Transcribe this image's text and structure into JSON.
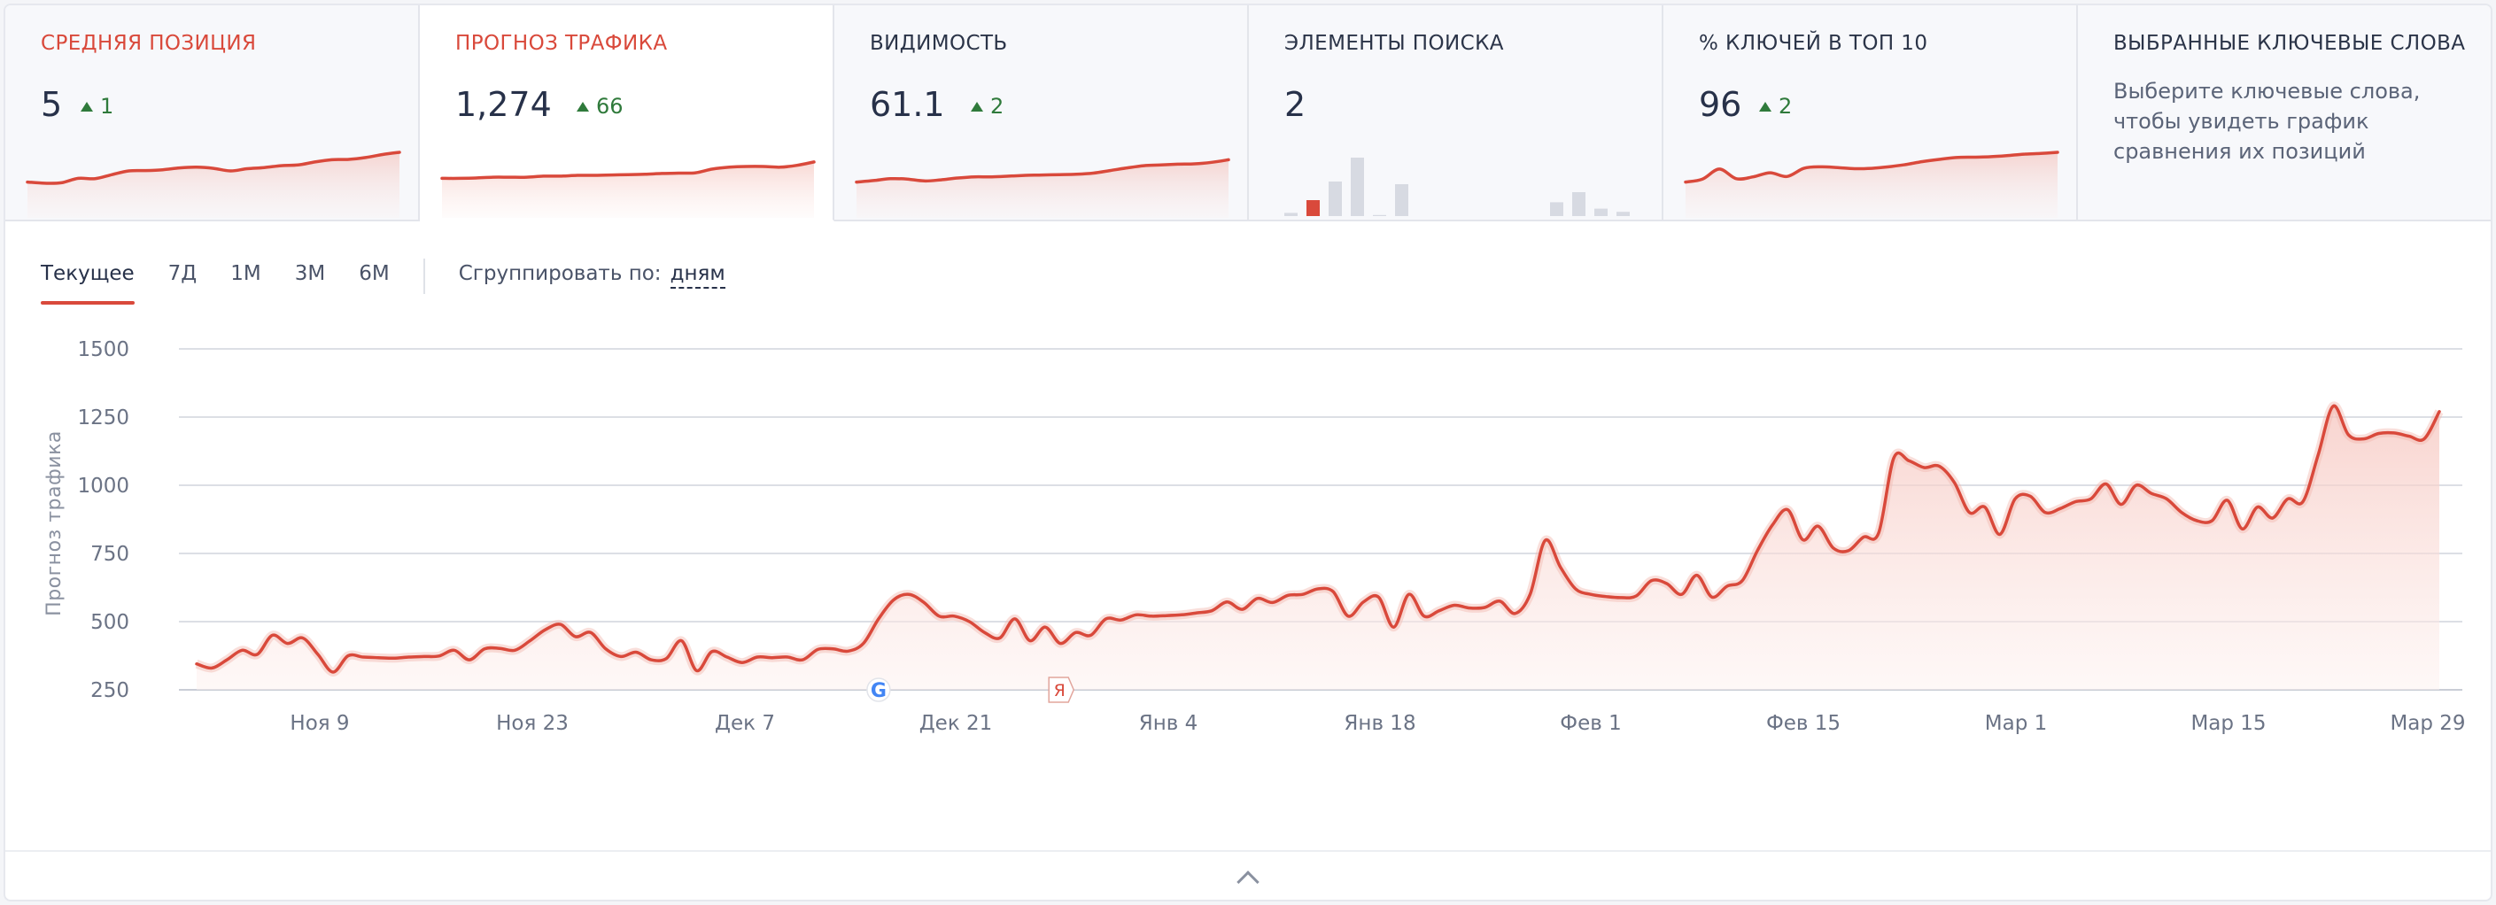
{
  "cards": [
    {
      "title": "Средняя позиция",
      "value": "5",
      "delta": "1",
      "red": true,
      "active": false,
      "spark": [
        2.0,
        1.7,
        1.8,
        3.0,
        2.9,
        4.0,
        5.0,
        5.1,
        5.3,
        5.8,
        6.0,
        5.7,
        5.0,
        5.6,
        5.9,
        6.4,
        6.6,
        7.4,
        8.0,
        8.1,
        8.6,
        9.4,
        10.0
      ]
    },
    {
      "title": "Прогноз трафика",
      "value": "1,274",
      "delta": "66",
      "red": true,
      "active": true,
      "spark": [
        3.0,
        3.0,
        3.1,
        3.3,
        3.3,
        3.3,
        3.6,
        3.6,
        3.8,
        3.8,
        3.9,
        4.0,
        4.1,
        4.3,
        4.4,
        4.5,
        5.5,
        6.0,
        6.2,
        6.2,
        6.0,
        6.5,
        7.4
      ]
    },
    {
      "title": "Видимость",
      "value": "61.1",
      "delta": "2",
      "red": false,
      "active": false,
      "spark": [
        2.0,
        2.4,
        2.9,
        2.8,
        2.3,
        2.6,
        3.1,
        3.4,
        3.4,
        3.6,
        3.8,
        3.9,
        4.0,
        4.1,
        4.4,
        5.1,
        5.8,
        6.4,
        6.6,
        6.8,
        6.9,
        7.3,
        8.0
      ]
    },
    {
      "title": "Элементы поиска",
      "value": "2",
      "delta": "",
      "red": false,
      "active": false,
      "bars": [
        0.6,
        3.0,
        6.5,
        11.0,
        0.2,
        6.0,
        0,
        0,
        0,
        0,
        0,
        0,
        2.6,
        4.5,
        1.4,
        0.8
      ]
    },
    {
      "title": "% ключей в топ 10",
      "value": "96",
      "delta": "2",
      "red": false,
      "active": false,
      "spark": [
        2.0,
        2.8,
        5.5,
        2.9,
        3.4,
        4.5,
        3.5,
        5.7,
        6.1,
        5.9,
        5.6,
        5.7,
        6.1,
        6.7,
        7.5,
        8.1,
        8.6,
        8.7,
        8.8,
        9.1,
        9.5,
        9.7,
        10.0
      ]
    },
    {
      "title": "Выбранные ключевые слова",
      "desc": "Выберите ключевые слова, чтобы увидеть график сравнения их позиций",
      "red": false,
      "active": false
    }
  ],
  "toolbar": {
    "tabs": [
      "Текущее",
      "7Д",
      "1М",
      "3М",
      "6М"
    ],
    "active_tab": 0,
    "group_label": "Сгруппировать по:",
    "group_value": "дням"
  },
  "chart_data": {
    "type": "area",
    "ylabel": "Прогноз трафика",
    "ylim": [
      250,
      1500
    ],
    "yticks": [
      "1500",
      "1250",
      "1000",
      "750",
      "500",
      "250"
    ],
    "xticks": [
      "Ноя 9",
      "Ноя 23",
      "Дек 7",
      "Дек 21",
      "Янв 4",
      "Янв 18",
      "Фев 1",
      "Фев 15",
      "Мар 1",
      "Мар 15",
      "Мар 29"
    ],
    "color": "#d9493b",
    "values": [
      345,
      330,
      360,
      395,
      380,
      450,
      420,
      440,
      380,
      315,
      375,
      370,
      368,
      366,
      370,
      372,
      374,
      395,
      360,
      400,
      402,
      395,
      430,
      470,
      490,
      445,
      460,
      400,
      372,
      388,
      360,
      365,
      430,
      320,
      390,
      370,
      350,
      370,
      368,
      370,
      360,
      398,
      400,
      392,
      420,
      510,
      580,
      600,
      570,
      520,
      520,
      500,
      460,
      440,
      510,
      430,
      480,
      420,
      460,
      450,
      510,
      506,
      525,
      520,
      522,
      525,
      532,
      540,
      572,
      545,
      585,
      570,
      596,
      600,
      620,
      610,
      520,
      572,
      590,
      480,
      600,
      520,
      540,
      560,
      550,
      552,
      575,
      530,
      600,
      798,
      700,
      620,
      600,
      592,
      588,
      594,
      650,
      640,
      600,
      670,
      590,
      630,
      650,
      760,
      855,
      910,
      800,
      850,
      770,
      760,
      810,
      825,
      1100,
      1090,
      1065,
      1070,
      1010,
      900,
      920,
      820,
      950,
      960,
      900,
      915,
      940,
      950,
      1005,
      930,
      1000,
      970,
      950,
      900,
      870,
      870,
      945,
      840,
      920,
      880,
      950,
      940,
      1110,
      1290,
      1185,
      1170,
      1190,
      1192,
      1180,
      1170,
      1270
    ]
  },
  "search_icons": [
    {
      "name": "google-icon",
      "label": "G",
      "at": 45
    },
    {
      "name": "yandex-icon",
      "label": "Я",
      "at": 57
    }
  ]
}
